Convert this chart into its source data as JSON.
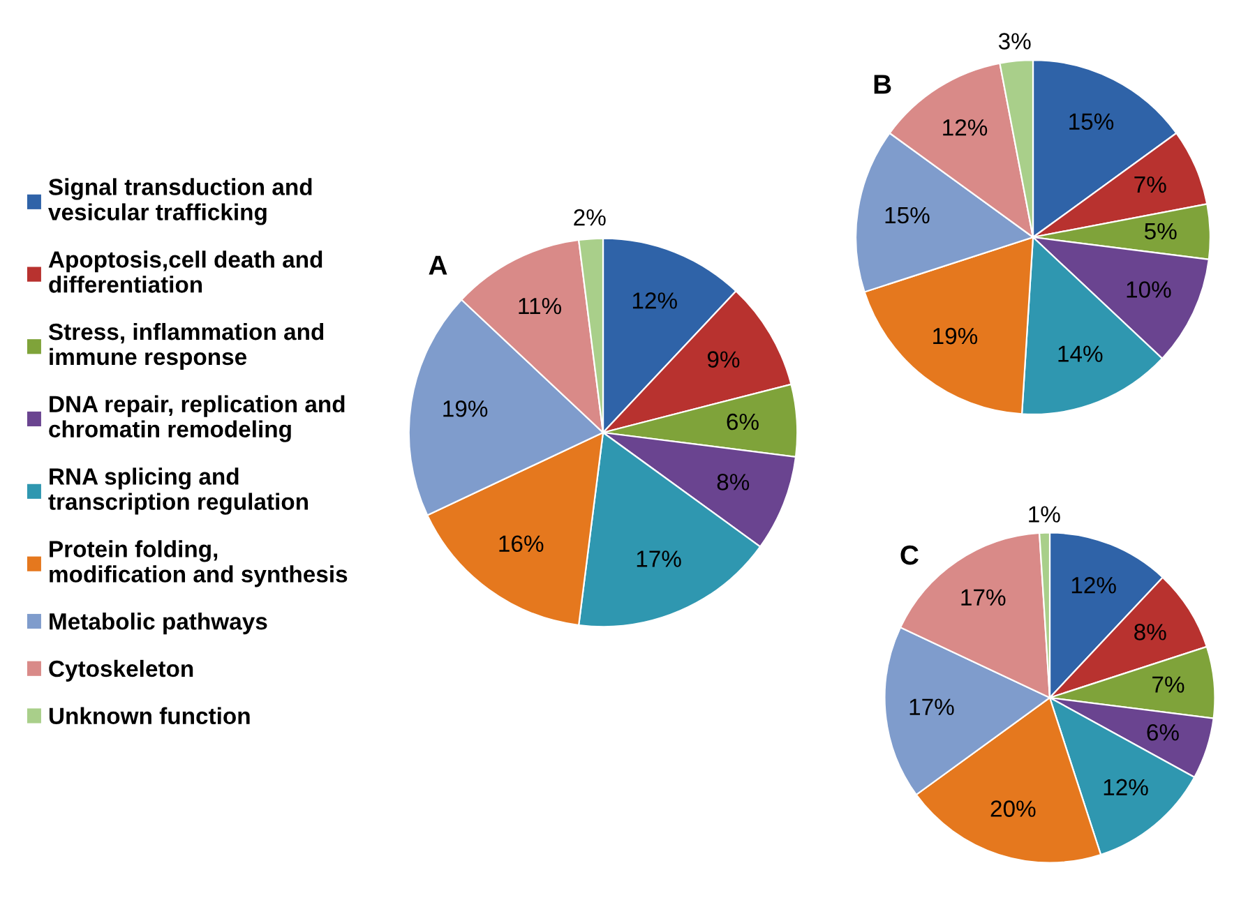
{
  "chart_data": [
    {
      "type": "pie",
      "title": "A",
      "legend": "left",
      "categories": [
        "Signal transduction and\nvesicular trafficking",
        "Apoptosis,cell death and\ndifferentiation",
        "Stress, inflammation and\nimmune response",
        "DNA repair, replication and\nchromatin remodeling",
        "RNA splicing and\ntranscription regulation",
        "Protein folding,\nmodification and synthesis",
        "Metabolic pathways",
        "Cytoskeleton",
        "Unknown function"
      ],
      "values": [
        12,
        9,
        6,
        8,
        17,
        16,
        19,
        11,
        2
      ],
      "value_labels": [
        "12%",
        "9%",
        "6%",
        "8%",
        "17%",
        "16%",
        "19%",
        "11%",
        "2%"
      ],
      "colors": [
        "#2f63a8",
        "#b8322f",
        "#7fa33a",
        "#6a4490",
        "#2f97b0",
        "#e5781e",
        "#7f9ccc",
        "#d98a88",
        "#a9cf8a"
      ]
    },
    {
      "type": "pie",
      "title": "B",
      "categories": [
        null,
        null,
        null,
        null,
        null,
        null,
        null,
        null,
        null
      ],
      "values": [
        15,
        7,
        5,
        10,
        14,
        19,
        15,
        12,
        3
      ],
      "value_labels": [
        "15%",
        "7%",
        "5%",
        "10%",
        "14%",
        "19%",
        "15%",
        "12%",
        "3%"
      ],
      "colors": [
        "#2f63a8",
        "#b8322f",
        "#7fa33a",
        "#6a4490",
        "#2f97b0",
        "#e5781e",
        "#7f9ccc",
        "#d98a88",
        "#a9cf8a"
      ]
    },
    {
      "type": "pie",
      "title": "C",
      "categories": [
        null,
        null,
        null,
        null,
        null,
        null,
        null,
        null,
        null
      ],
      "values": [
        12,
        8,
        7,
        6,
        12,
        20,
        17,
        17,
        1
      ],
      "value_labels": [
        "12%",
        "8%",
        "7%",
        "6%",
        "12%",
        "20%",
        "17%",
        "17%",
        "1%"
      ],
      "colors": [
        "#2f63a8",
        "#b8322f",
        "#7fa33a",
        "#6a4490",
        "#2f97b0",
        "#e5781e",
        "#7f9ccc",
        "#d98a88",
        "#a9cf8a"
      ]
    }
  ]
}
